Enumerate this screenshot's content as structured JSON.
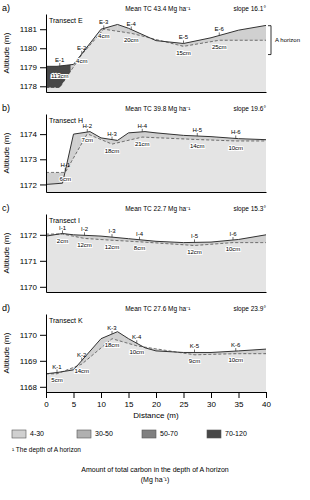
{
  "chart_data": [
    {
      "type": "area",
      "title": "Transect E",
      "annotations": [
        "a)",
        "Mean  TC 43.4 Mg ha⁻¹",
        "slope 16.1°",
        "A horizon"
      ],
      "y_label": "Altitude (m)",
      "x": [
        0,
        2,
        5,
        10,
        13,
        15,
        20,
        25,
        30,
        35,
        40
      ],
      "values": [
        1179.05,
        1179.05,
        1179.15,
        1181.0,
        1181.25,
        1181.05,
        1180.4,
        1180.25,
        1180.55,
        1180.95,
        1181.2
      ],
      "sites": {
        "categories": [
          "E-1",
          "E-2",
          "E-3",
          "E-4",
          "E-5",
          "E-6"
        ],
        "x": [
          2.5,
          6.5,
          10.5,
          15.5,
          25.0,
          31.5
        ],
        "values": [
          1.13,
          0.04,
          0.04,
          0.2,
          0.15,
          0.25
        ],
        "value_labels": [
          "113cm",
          "4cm",
          "4cm",
          "20cm",
          "15cm",
          "25cm"
        ],
        "colors": [
          "#484848",
          "#d0d0d0",
          "#d0d0d0",
          "#d0d0d0",
          "#d0d0d0",
          "#d0d0d0"
        ]
      },
      "data_labels": true,
      "xlim": [
        0,
        40
      ],
      "ylim": [
        1177.7,
        1181.8
      ],
      "yticks": [
        1178,
        1179,
        1180,
        1181
      ],
      "tick_labels": "y"
    },
    {
      "type": "area",
      "title": "Transect H",
      "annotations": [
        "b)",
        "Mean  TC 39.8 Mg ha⁻¹",
        "slope 19.6°"
      ],
      "y_label": "Altitude (m)",
      "x": [
        0,
        3,
        5,
        8,
        10,
        13,
        15,
        18,
        20,
        25,
        30,
        35,
        40
      ],
      "values": [
        1172.0,
        1172.05,
        1174.0,
        1174.1,
        1173.85,
        1173.75,
        1174.05,
        1174.1,
        1174.05,
        1173.95,
        1173.9,
        1173.82,
        1173.78
      ],
      "sites": {
        "categories": [
          "H-1",
          "H-2",
          "H-3",
          "H-4",
          "H-5",
          "H-6"
        ],
        "x": [
          3.5,
          7.5,
          12.0,
          17.5,
          27.5,
          34.5
        ],
        "values": [
          0.06,
          0.07,
          0.18,
          0.21,
          0.14,
          0.1
        ],
        "value_labels": [
          "6cm",
          "7cm",
          "18cm",
          "21cm",
          "14cm",
          "10cm"
        ],
        "colors": [
          "#d0d0d0",
          "#d0d0d0",
          "#d0d0d0",
          "#d0d0d0",
          "#d0d0d0",
          "#d0d0d0"
        ]
      },
      "data_labels": true,
      "xlim": [
        0,
        40
      ],
      "ylim": [
        1171.7,
        1174.8
      ],
      "yticks": [
        1172,
        1173,
        1174
      ],
      "tick_labels": "y"
    },
    {
      "type": "area",
      "title": "Transect I",
      "annotations": [
        "c)",
        "Mean  TC 22.7 Mg ha⁻¹",
        "slope 15.3°"
      ],
      "y_label": "Altitude (m)",
      "x": [
        0,
        3,
        5,
        10,
        15,
        20,
        25,
        30,
        35,
        40
      ],
      "values": [
        1171.95,
        1172.05,
        1172.0,
        1171.95,
        1171.85,
        1171.75,
        1171.7,
        1171.72,
        1171.82,
        1172.0
      ],
      "sites": {
        "categories": [
          "I-1",
          "I-2",
          "I-3",
          "I-4",
          "I-5",
          "I-6"
        ],
        "x": [
          3.0,
          7.0,
          12.0,
          17.0,
          27.0,
          34.0
        ],
        "values": [
          0.02,
          0.12,
          0.12,
          0.08,
          0.12,
          0.1
        ],
        "value_labels": [
          "2cm",
          "12cm",
          "12cm",
          "8cm",
          "12cm",
          "10cm"
        ],
        "colors": [
          "#d0d0d0",
          "#d0d0d0",
          "#d0d0d0",
          "#d0d0d0",
          "#d0d0d0",
          "#d0d0d0"
        ]
      },
      "data_labels": true,
      "xlim": [
        0,
        40
      ],
      "ylim": [
        1169.8,
        1172.8
      ],
      "yticks": [
        1170,
        1171,
        1172
      ],
      "tick_labels": "y"
    },
    {
      "type": "area",
      "title": "Transect K",
      "annotations": [
        "d)",
        "Mean  TC 27.6 Mg ha⁻¹",
        "slope 23.9°"
      ],
      "x_label": "Distance (m)",
      "y_label": "Altitude (m)",
      "x": [
        0,
        2,
        5,
        10,
        13,
        15,
        18,
        20,
        25,
        30,
        35,
        40
      ],
      "values": [
        1168.5,
        1168.55,
        1168.65,
        1169.85,
        1170.12,
        1169.85,
        1169.5,
        1169.38,
        1169.32,
        1169.32,
        1169.38,
        1169.45
      ],
      "sites": {
        "categories": [
          "K-1",
          "K-2",
          "K-3",
          "K-4",
          "K-5",
          "K-6"
        ],
        "x": [
          2.0,
          6.5,
          12.0,
          16.5,
          27.0,
          34.5
        ],
        "values": [
          0.05,
          0.14,
          0.18,
          0.1,
          0.09,
          0.1
        ],
        "value_labels": [
          "5cm",
          "14cm",
          "18cm",
          "10cm",
          "9cm",
          "10cm"
        ],
        "colors": [
          "#d0d0d0",
          "#d0d0d0",
          "#d0d0d0",
          "#d0d0d0",
          "#d0d0d0",
          "#d0d0d0"
        ]
      },
      "data_labels": true,
      "xlim": [
        0,
        40
      ],
      "ylim": [
        1167.8,
        1170.8
      ],
      "xticks": [
        0,
        5,
        10,
        15,
        20,
        25,
        30,
        35,
        40
      ],
      "yticks": [
        1168,
        1169,
        1170
      ]
    }
  ],
  "series": [
    {
      "name": "4-30",
      "color": "#d0d0d0"
    },
    {
      "name": "30-50",
      "color": "#b0b0b0"
    },
    {
      "name": "50-70",
      "color": "#808080"
    },
    {
      "name": "70-120",
      "color": "#484848"
    }
  ],
  "legend": "bottom",
  "annotations": [
    "¹ The depth of A horizon",
    "Amount of total carbon in the depth of A horizon\n(Mg ha⁻¹)"
  ]
}
